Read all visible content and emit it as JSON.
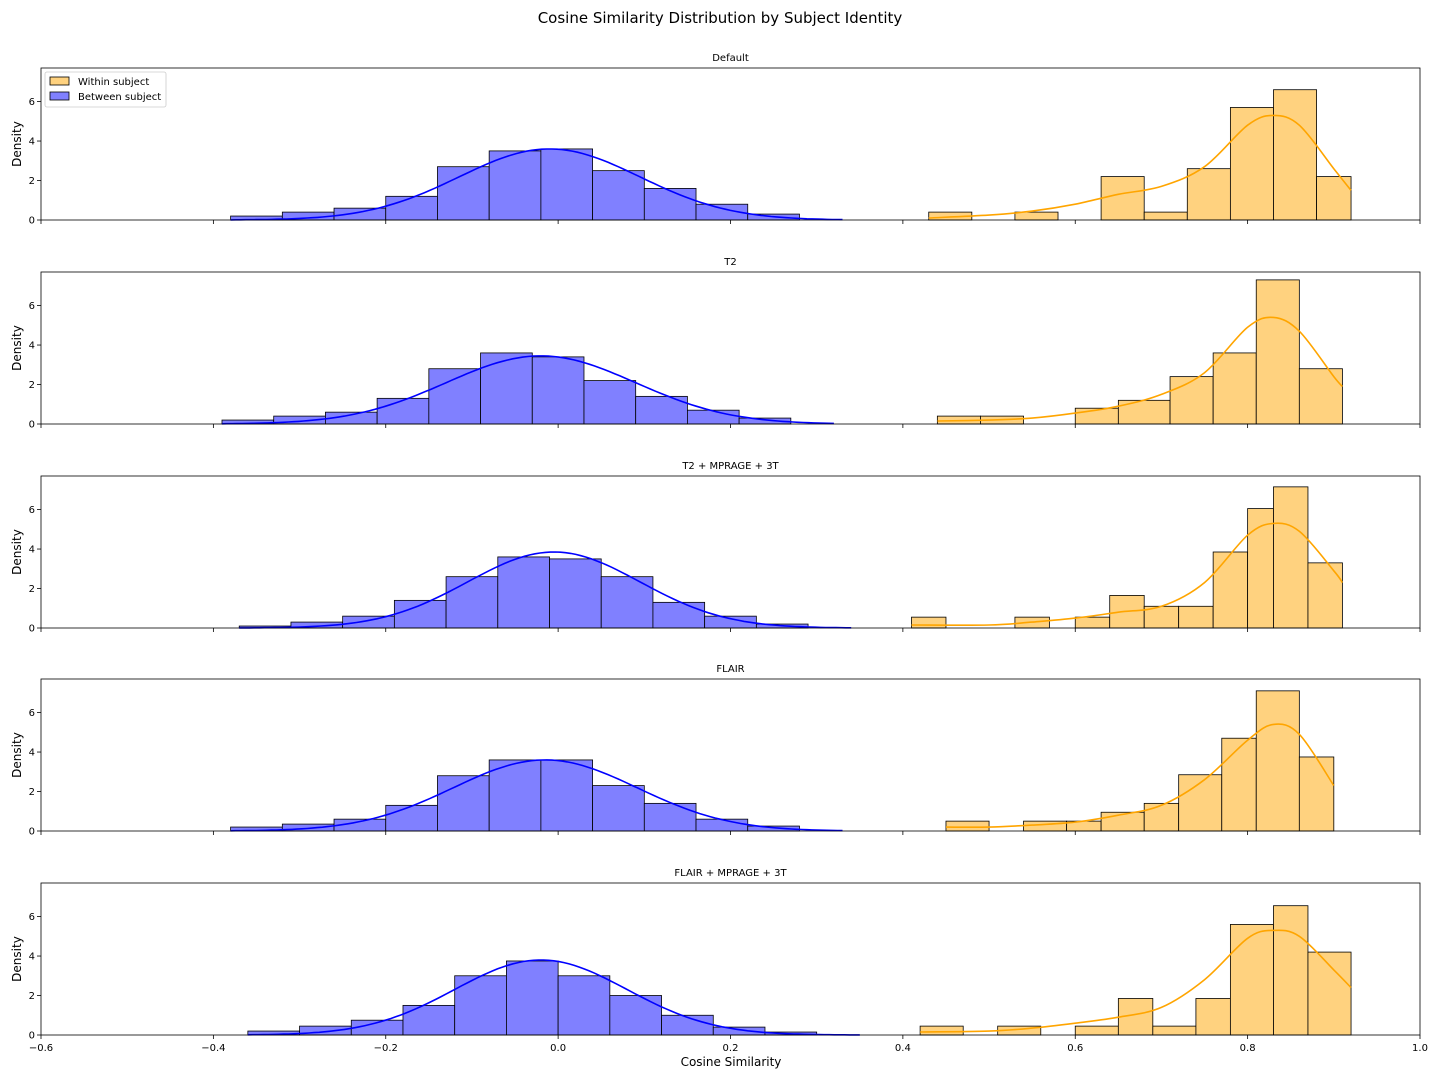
{
  "figure": {
    "title": "Cosine Similarity Distribution by Subject Identity",
    "xlabel": "Cosine Similarity",
    "ylabel": "Density"
  },
  "colors": {
    "within_fill": "#ffd27f",
    "within_line": "#ffa500",
    "between_fill": "#8080ff",
    "between_line": "#0000ff",
    "edge": "#000000"
  },
  "legend": {
    "placement": "upper-left",
    "within_label": "Within subject",
    "between_label": "Between subject"
  },
  "chart_data": [
    {
      "type": "histogram",
      "title": "Default",
      "xlim": [
        -0.6,
        1.0
      ],
      "ylim": [
        0,
        7.7
      ],
      "x_ticks": [
        -0.6,
        -0.4,
        -0.2,
        0.0,
        0.2,
        0.4,
        0.6,
        0.8,
        1.0
      ],
      "y_ticks": [
        0,
        2,
        4,
        6
      ],
      "series": [
        {
          "name": "Between subject",
          "bin_edges": [
            -0.38,
            -0.32,
            -0.26,
            -0.2,
            -0.14,
            -0.08,
            -0.02,
            0.04,
            0.1,
            0.16,
            0.22,
            0.28
          ],
          "values": [
            0.2,
            0.4,
            0.6,
            1.2,
            2.7,
            3.5,
            3.6,
            2.5,
            1.6,
            0.8,
            0.3,
            0.1
          ],
          "kde": {
            "mean": -0.01,
            "std": 0.105,
            "peak": 3.6
          }
        },
        {
          "name": "Within subject",
          "bin_edges": [
            0.43,
            0.48,
            0.53,
            0.58,
            0.63,
            0.68,
            0.73,
            0.78,
            0.83,
            0.88,
            0.92
          ],
          "values": [
            0.4,
            0,
            0.4,
            0,
            2.2,
            0.4,
            2.6,
            5.7,
            6.6,
            2.2
          ],
          "kde_x": [
            0.43,
            0.5,
            0.55,
            0.6,
            0.65,
            0.7,
            0.75,
            0.8,
            0.83,
            0.86,
            0.9,
            0.92
          ],
          "kde_y": [
            0.1,
            0.25,
            0.45,
            0.8,
            1.3,
            1.7,
            2.7,
            4.8,
            5.3,
            4.8,
            2.6,
            1.5
          ]
        }
      ]
    },
    {
      "type": "histogram",
      "title": "T2",
      "xlim": [
        -0.6,
        1.0
      ],
      "ylim": [
        0,
        7.7
      ],
      "x_ticks": [
        -0.6,
        -0.4,
        -0.2,
        0.0,
        0.2,
        0.4,
        0.6,
        0.8,
        1.0
      ],
      "y_ticks": [
        0,
        2,
        4,
        6
      ],
      "series": [
        {
          "name": "Between subject",
          "bin_edges": [
            -0.39,
            -0.33,
            -0.27,
            -0.21,
            -0.15,
            -0.09,
            -0.03,
            0.03,
            0.09,
            0.15,
            0.21,
            0.27
          ],
          "values": [
            0.2,
            0.4,
            0.6,
            1.3,
            2.8,
            3.6,
            3.4,
            2.2,
            1.4,
            0.7,
            0.3,
            0.1
          ],
          "kde": {
            "mean": -0.02,
            "std": 0.11,
            "peak": 3.45
          }
        },
        {
          "name": "Within subject",
          "bin_edges": [
            0.44,
            0.49,
            0.54,
            0.6,
            0.65,
            0.71,
            0.76,
            0.81,
            0.86,
            0.91
          ],
          "values": [
            0.4,
            0.4,
            0,
            0.8,
            1.2,
            2.4,
            3.6,
            7.3,
            2.8
          ],
          "kde_x": [
            0.44,
            0.5,
            0.55,
            0.6,
            0.65,
            0.7,
            0.75,
            0.8,
            0.83,
            0.86,
            0.9,
            0.91
          ],
          "kde_y": [
            0.15,
            0.2,
            0.3,
            0.55,
            0.9,
            1.5,
            2.6,
            4.9,
            5.4,
            4.7,
            2.4,
            1.9
          ]
        }
      ]
    },
    {
      "type": "histogram",
      "title": "T2 + MPRAGE + 3T",
      "xlim": [
        -0.6,
        1.0
      ],
      "ylim": [
        0,
        7.7
      ],
      "x_ticks": [
        -0.6,
        -0.4,
        -0.2,
        0.0,
        0.2,
        0.4,
        0.6,
        0.8,
        1.0
      ],
      "y_ticks": [
        0,
        2,
        4,
        6
      ],
      "series": [
        {
          "name": "Between subject",
          "bin_edges": [
            -0.37,
            -0.31,
            -0.25,
            -0.19,
            -0.13,
            -0.07,
            -0.01,
            0.05,
            0.11,
            0.17,
            0.23,
            0.29
          ],
          "values": [
            0.1,
            0.3,
            0.6,
            1.4,
            2.6,
            3.6,
            3.5,
            2.6,
            1.3,
            0.6,
            0.2,
            0.1
          ],
          "kde": {
            "mean": -0.005,
            "std": 0.1,
            "peak": 3.85
          }
        },
        {
          "name": "Within subject",
          "bin_edges": [
            0.41,
            0.45,
            0.49,
            0.53,
            0.57,
            0.6,
            0.64,
            0.68,
            0.72,
            0.76,
            0.8,
            0.83,
            0.87,
            0.91
          ],
          "values": [
            0.55,
            0,
            0,
            0.55,
            0,
            0.55,
            1.65,
            1.1,
            1.1,
            3.85,
            6.05,
            7.15,
            3.3
          ],
          "kde_x": [
            0.41,
            0.5,
            0.55,
            0.6,
            0.65,
            0.7,
            0.75,
            0.8,
            0.83,
            0.86,
            0.9,
            0.91
          ],
          "kde_y": [
            0.15,
            0.15,
            0.3,
            0.5,
            0.8,
            1.1,
            2.3,
            4.7,
            5.3,
            4.9,
            2.9,
            2.3
          ]
        }
      ]
    },
    {
      "type": "histogram",
      "title": "FLAIR",
      "xlim": [
        -0.6,
        1.0
      ],
      "ylim": [
        0,
        7.7
      ],
      "x_ticks": [
        -0.6,
        -0.4,
        -0.2,
        0.0,
        0.2,
        0.4,
        0.6,
        0.8,
        1.0
      ],
      "y_ticks": [
        0,
        2,
        4,
        6
      ],
      "series": [
        {
          "name": "Between subject",
          "bin_edges": [
            -0.38,
            -0.32,
            -0.26,
            -0.2,
            -0.14,
            -0.08,
            -0.02,
            0.04,
            0.1,
            0.16,
            0.22,
            0.28
          ],
          "values": [
            0.2,
            0.35,
            0.6,
            1.3,
            2.8,
            3.6,
            3.6,
            2.3,
            1.4,
            0.6,
            0.25,
            0.1
          ],
          "kde": {
            "mean": -0.015,
            "std": 0.107,
            "peak": 3.6
          }
        },
        {
          "name": "Within subject",
          "bin_edges": [
            0.45,
            0.5,
            0.54,
            0.59,
            0.63,
            0.68,
            0.72,
            0.77,
            0.81,
            0.86,
            0.9
          ],
          "values": [
            0.5,
            0,
            0.5,
            0.5,
            0.95,
            1.4,
            2.85,
            4.7,
            7.1,
            3.75
          ],
          "kde_x": [
            0.45,
            0.5,
            0.55,
            0.6,
            0.65,
            0.7,
            0.75,
            0.8,
            0.83,
            0.86,
            0.9
          ],
          "kde_y": [
            0.2,
            0.2,
            0.3,
            0.45,
            0.8,
            1.3,
            2.6,
            4.6,
            5.4,
            4.9,
            2.3
          ]
        }
      ]
    },
    {
      "type": "histogram",
      "title": "FLAIR + MPRAGE + 3T",
      "xlim": [
        -0.6,
        1.0
      ],
      "ylim": [
        0,
        7.7
      ],
      "x_ticks": [
        -0.6,
        -0.4,
        -0.2,
        0.0,
        0.2,
        0.4,
        0.6,
        0.8,
        1.0
      ],
      "y_ticks": [
        0,
        2,
        4,
        6
      ],
      "series": [
        {
          "name": "Between subject",
          "bin_edges": [
            -0.36,
            -0.3,
            -0.24,
            -0.18,
            -0.12,
            -0.06,
            0.0,
            0.06,
            0.12,
            0.18,
            0.24,
            0.3
          ],
          "values": [
            0.2,
            0.45,
            0.75,
            1.5,
            3.0,
            3.75,
            3.0,
            2.0,
            1.0,
            0.4,
            0.15,
            0.05
          ],
          "kde": {
            "mean": -0.02,
            "std": 0.1,
            "peak": 3.8
          }
        },
        {
          "name": "Within subject",
          "bin_edges": [
            0.42,
            0.47,
            0.51,
            0.56,
            0.6,
            0.65,
            0.69,
            0.74,
            0.78,
            0.83,
            0.87,
            0.92
          ],
          "values": [
            0.45,
            0,
            0.45,
            0,
            0.45,
            1.85,
            0.45,
            1.85,
            5.6,
            6.55,
            4.2
          ],
          "kde_x": [
            0.42,
            0.5,
            0.55,
            0.6,
            0.65,
            0.7,
            0.75,
            0.8,
            0.83,
            0.86,
            0.9,
            0.92
          ],
          "kde_y": [
            0.15,
            0.2,
            0.35,
            0.6,
            0.9,
            1.4,
            2.8,
            4.9,
            5.3,
            5.0,
            3.3,
            2.4
          ]
        }
      ]
    }
  ]
}
